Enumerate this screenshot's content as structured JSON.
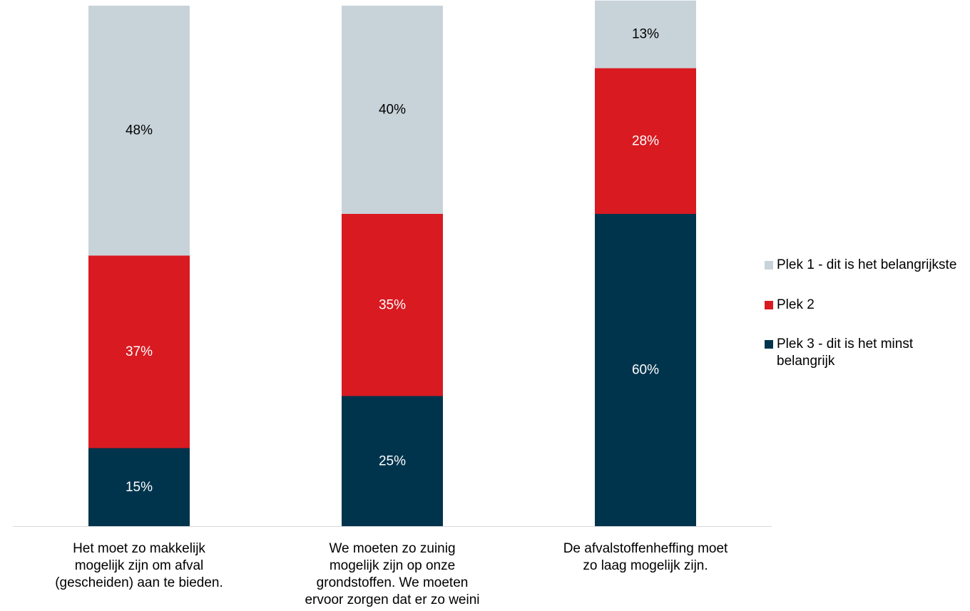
{
  "chart_data": {
    "type": "bar",
    "stacked": true,
    "normalized": true,
    "categories": [
      "Het moet zo makkelijk mogelijk zijn om afval (gescheiden) aan te bieden.",
      "We moeten zo zuinig mogelijk zijn op onze grondstoffen. We moeten ervoor zorgen dat er zo weini",
      "De afvalstoffenheffing moet zo laag mogelijk zijn."
    ],
    "series": [
      {
        "name": "Plek 3 - dit is het minst belangrijk",
        "values": [
          15,
          25,
          60
        ],
        "color": "#00344d",
        "label_color": "#ffffff"
      },
      {
        "name": "Plek 2",
        "values": [
          37,
          35,
          28
        ],
        "color": "#d91a21",
        "label_color": "#ffffff"
      },
      {
        "name": "Plek 1 - dit is het belangrijkste",
        "values": [
          48,
          40,
          13
        ],
        "color": "#c8d3d9",
        "label_color": "#000000"
      }
    ],
    "data_labels": [
      [
        "15%",
        "25%",
        "60%"
      ],
      [
        "37%",
        "35%",
        "28%"
      ],
      [
        "48%",
        "40%",
        "13%"
      ]
    ],
    "legend": {
      "position": "right",
      "entries": [
        "Plek 1 - dit is het belangrijkste",
        "Plek 2",
        "Plek 3 - dit is het minst belangrijk"
      ]
    },
    "legend_colors": [
      "#c8d3d9",
      "#d91a21",
      "#00344d"
    ],
    "title": "",
    "xlabel": "",
    "ylabel": "",
    "ylim": [
      0,
      100
    ],
    "grid": false,
    "axis_color": "#d9d9d9"
  }
}
